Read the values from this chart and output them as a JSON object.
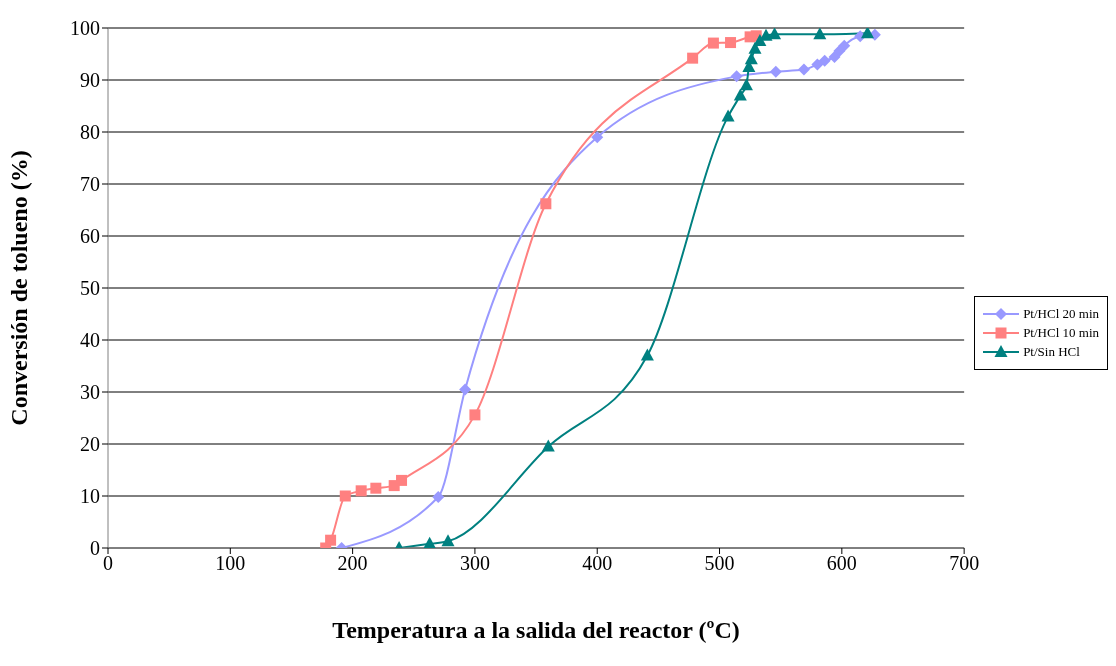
{
  "chart_data": {
    "type": "line",
    "xlabel": "Temperatura a la salida del reactor (ºC)",
    "ylabel": "Conversión de tolueno (%)",
    "xlim": [
      0,
      700
    ],
    "xticks": [
      0,
      100,
      200,
      300,
      400,
      500,
      600,
      700
    ],
    "ylim": [
      0,
      100
    ],
    "yticks": [
      0,
      10,
      20,
      30,
      40,
      50,
      60,
      70,
      80,
      90,
      100
    ],
    "grid": "y",
    "legend": "right",
    "series": [
      {
        "name": "Pt/HCl 20 min",
        "color": "#9999ff",
        "marker": "diamond",
        "x": [
          191,
          270,
          292,
          400,
          514,
          546,
          569,
          580,
          586,
          594,
          598,
          602,
          615,
          627
        ],
        "values": [
          0,
          9.8,
          30.5,
          79,
          90.7,
          91.6,
          92,
          93,
          93.7,
          94.4,
          95.6,
          96.6,
          98.4,
          98.7
        ]
      },
      {
        "name": "Pt/HCl 10 min",
        "color": "#ff8080",
        "marker": "square",
        "x": [
          178,
          182,
          194,
          207,
          219,
          234,
          240,
          300,
          358,
          478,
          495,
          509,
          525,
          530
        ],
        "values": [
          0,
          1.5,
          10,
          11,
          11.5,
          12,
          13,
          25.6,
          66.2,
          94.2,
          97.1,
          97.2,
          98.3,
          98.5
        ]
      },
      {
        "name": "Pt/Sin HCl",
        "color": "#008080",
        "marker": "triangle",
        "x": [
          238,
          263,
          278,
          360,
          441,
          507,
          517,
          522,
          524,
          526,
          529,
          533,
          538,
          545,
          582,
          621
        ],
        "values": [
          0,
          0.8,
          1.3,
          19.5,
          37,
          83,
          87,
          89,
          92.5,
          94,
          96,
          97.5,
          98.5,
          98.8,
          98.8,
          99
        ]
      }
    ]
  }
}
